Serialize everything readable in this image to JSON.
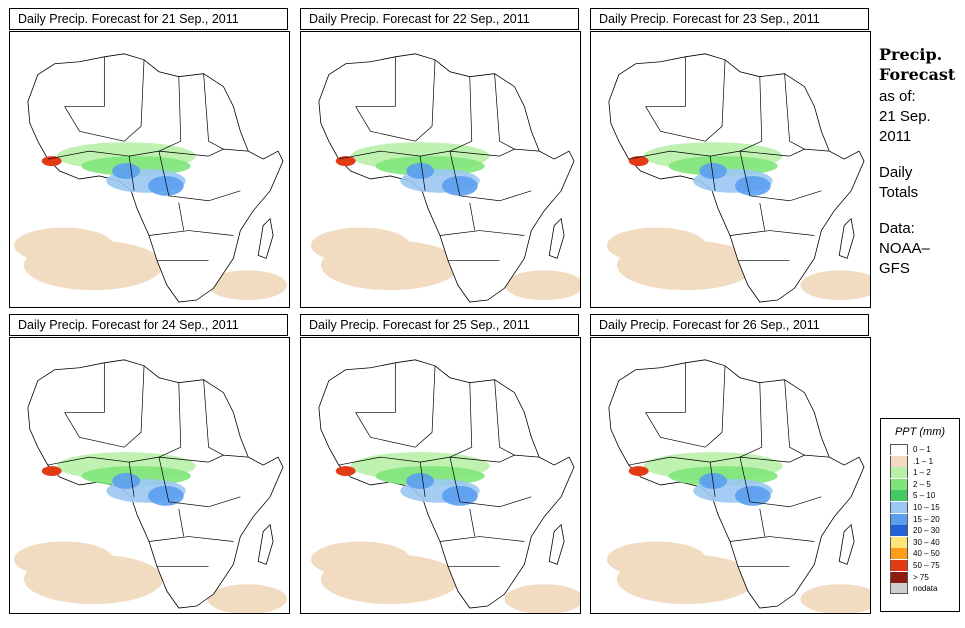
{
  "panels": [
    {
      "title": "Daily Precip. Forecast for  21 Sep., 2011"
    },
    {
      "title": "Daily Precip. Forecast for  22 Sep., 2011"
    },
    {
      "title": "Daily Precip. Forecast for  23 Sep., 2011"
    },
    {
      "title": "Daily Precip. Forecast for  24 Sep., 2011"
    },
    {
      "title": "Daily Precip. Forecast for  25 Sep., 2011"
    },
    {
      "title": "Daily Precip. Forecast for  26 Sep., 2011"
    }
  ],
  "side": {
    "head1": "Precip.",
    "head2": "Forecast",
    "asof": "as of:",
    "date1": "21 Sep.",
    "date2": "2011",
    "daily1": "Daily",
    "daily2": "Totals",
    "data1": "Data:",
    "data2": "NOAA–",
    "data3": "GFS"
  },
  "legend": {
    "title": "PPT (mm)",
    "items": [
      {
        "label": "0 – 1",
        "color": "#ffffff"
      },
      {
        "label": ".1 – 1",
        "color": "#f1dcc2"
      },
      {
        "label": "1 – 2",
        "color": "#b8f0a8"
      },
      {
        "label": "2 – 5",
        "color": "#7fe47a"
      },
      {
        "label": "5 – 10",
        "color": "#44c965"
      },
      {
        "label": "10 – 15",
        "color": "#9bc8f3"
      },
      {
        "label": "15 – 20",
        "color": "#5a9ef0"
      },
      {
        "label": "20 – 30",
        "color": "#2262d6"
      },
      {
        "label": "30 – 40",
        "color": "#ffe47a"
      },
      {
        "label": "40 – 50",
        "color": "#ff9d1a"
      },
      {
        "label": "50 – 75",
        "color": "#e13a15"
      },
      {
        "label": "> 75",
        "color": "#8f1a12"
      },
      {
        "label": "nodata",
        "color": "#cfcfcf"
      }
    ]
  },
  "colors": {
    "sand": "#f1dcc2",
    "lightgreen": "#b8f0a8",
    "green": "#7fe47a",
    "lightblue": "#9bc8f3",
    "blue": "#5a9ef0",
    "red": "#e13a15"
  }
}
